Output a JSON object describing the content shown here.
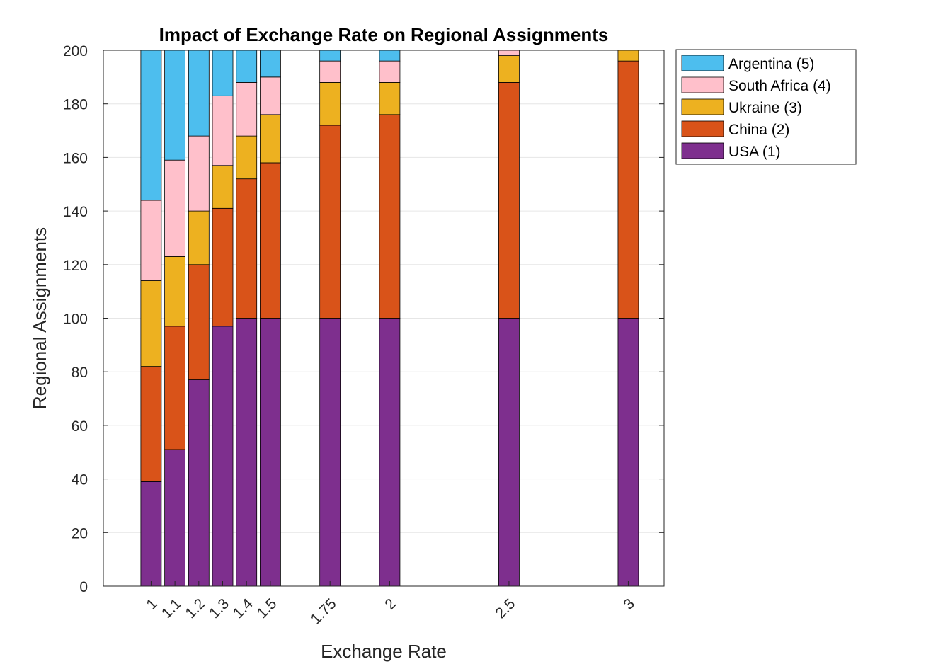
{
  "chart_data": {
    "type": "bar",
    "stacked": true,
    "title": "Impact of Exchange Rate on Regional Assignments",
    "xlabel": "Exchange Rate",
    "ylabel": "Regional Assignments",
    "ylim": [
      0,
      200
    ],
    "yticks": [
      0,
      20,
      40,
      60,
      80,
      100,
      120,
      140,
      160,
      180,
      200
    ],
    "xlim": [
      0.8,
      3.15
    ],
    "x": [
      1,
      1.1,
      1.2,
      1.3,
      1.4,
      1.5,
      1.75,
      2,
      2.5,
      3
    ],
    "x_tick_labels": [
      "1",
      "1.1",
      "1.2",
      "1.3",
      "1.4",
      "1.5",
      "1.75",
      "2",
      "2.5",
      "3"
    ],
    "grid": "y",
    "legend_position": "outside right, top",
    "series": [
      {
        "name": "USA (1)",
        "color": "#7E2F8E",
        "values": [
          39,
          51,
          77,
          97,
          100,
          100,
          100,
          100,
          100,
          100
        ]
      },
      {
        "name": "China (2)",
        "color": "#D95319",
        "values": [
          43,
          46,
          43,
          44,
          52,
          58,
          72,
          76,
          88,
          96
        ]
      },
      {
        "name": "Ukraine (3)",
        "color": "#EDB120",
        "values": [
          32,
          26,
          20,
          16,
          16,
          18,
          16,
          12,
          10,
          4
        ]
      },
      {
        "name": "South Africa (4)",
        "color": "#FFC0CB",
        "values": [
          30,
          36,
          28,
          26,
          20,
          14,
          8,
          8,
          2,
          0
        ]
      },
      {
        "name": "Argentina (5)",
        "color": "#4DBEEE",
        "values": [
          56,
          41,
          32,
          17,
          12,
          10,
          4,
          4,
          0,
          0
        ]
      }
    ]
  }
}
